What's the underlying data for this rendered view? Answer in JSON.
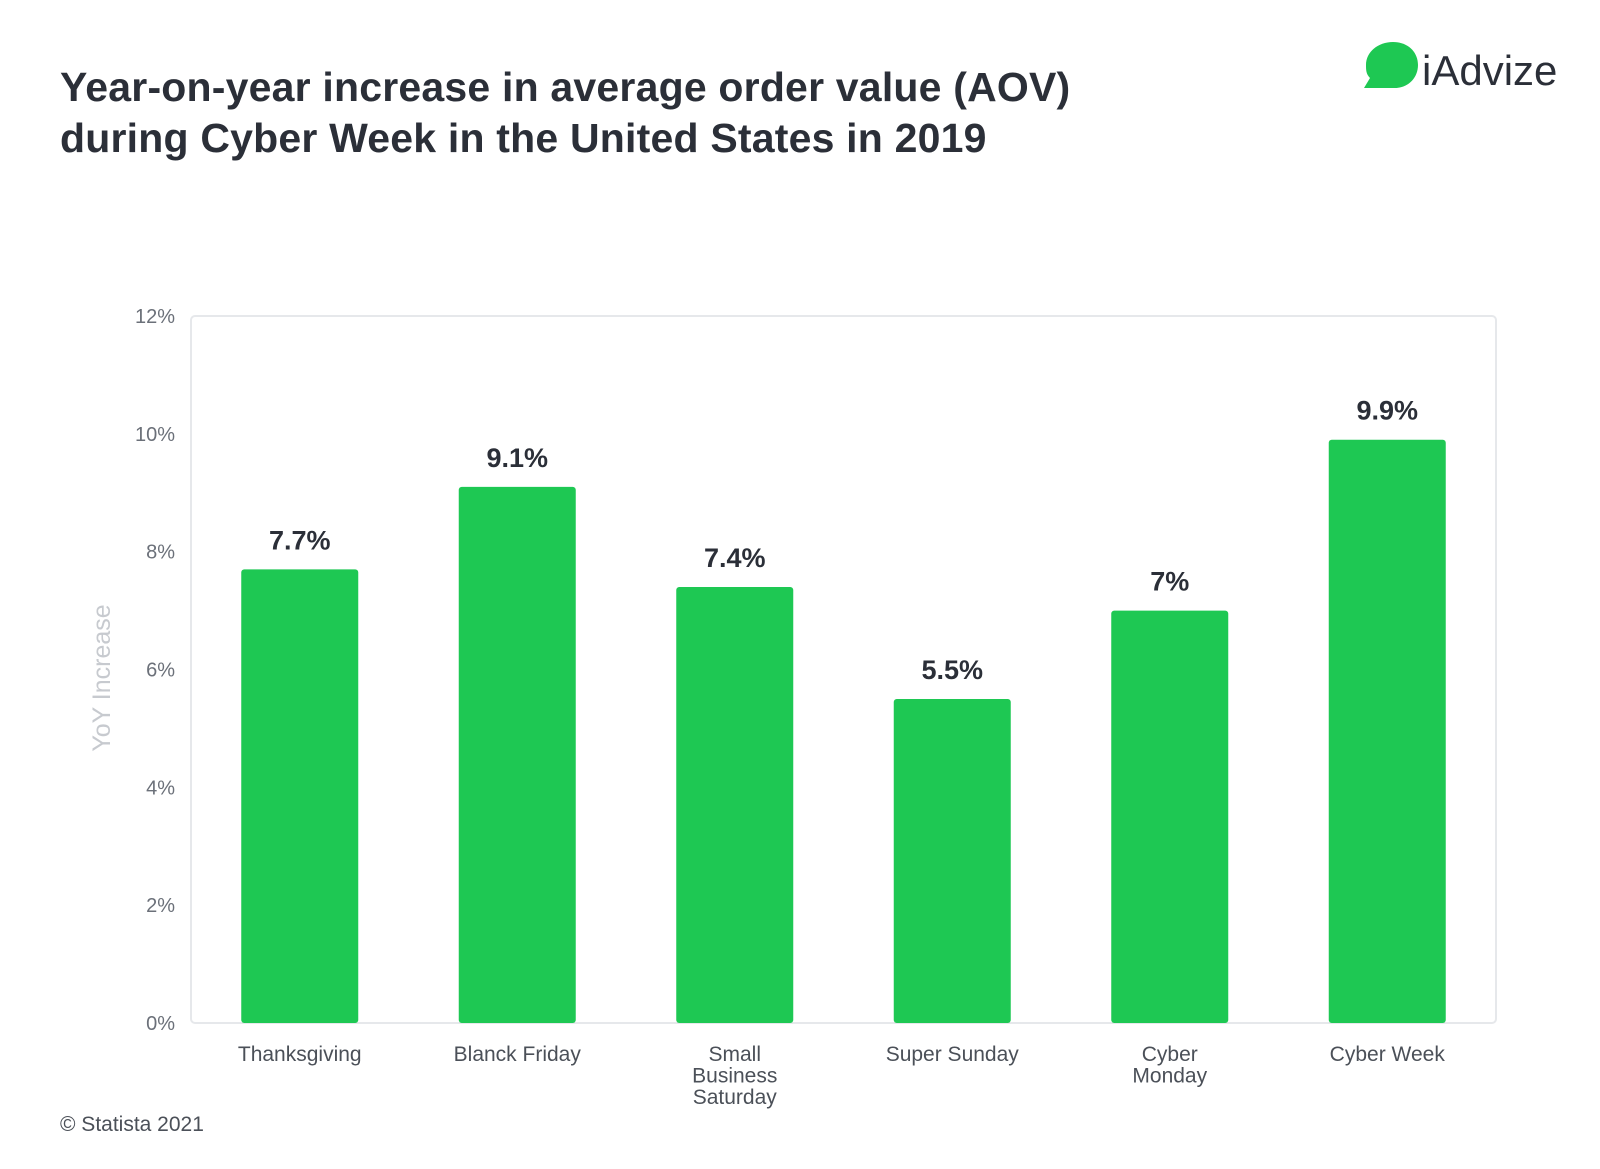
{
  "header": {
    "title_line1": "Year-on-year increase in average order value (AOV)",
    "title_line2": "during Cyber Week in the United States in 2019"
  },
  "brand": {
    "name": "iAdvize",
    "icon": "speech-bubble-icon",
    "color": "#1ec853"
  },
  "footer": {
    "source": "© Statista 2021"
  },
  "chart_data": {
    "type": "bar",
    "categories": [
      "Thanksgiving",
      "Blanck Friday",
      "Small Business Saturday",
      "Super Sunday",
      "Cyber Monday",
      "Cyber Week"
    ],
    "category_lines": [
      [
        "Thanksgiving"
      ],
      [
        "Blanck Friday"
      ],
      [
        "Small",
        "Business",
        "Saturday"
      ],
      [
        "Super Sunday"
      ],
      [
        "Cyber",
        "Monday"
      ],
      [
        "Cyber Week"
      ]
    ],
    "values": [
      7.7,
      9.1,
      7.4,
      5.5,
      7.0,
      9.9
    ],
    "value_labels": [
      "7.7%",
      "9.1%",
      "7.4%",
      "5.5%",
      "7%",
      "9.9%"
    ],
    "ylabel": "YoY Increase",
    "ylim": [
      0,
      12
    ],
    "yticks": [
      0,
      2,
      4,
      6,
      8,
      10,
      12
    ],
    "ytick_labels": [
      "0%",
      "2%",
      "4%",
      "6%",
      "8%",
      "10%",
      "12%"
    ],
    "bar_color": "#1ec853",
    "grid": false
  }
}
